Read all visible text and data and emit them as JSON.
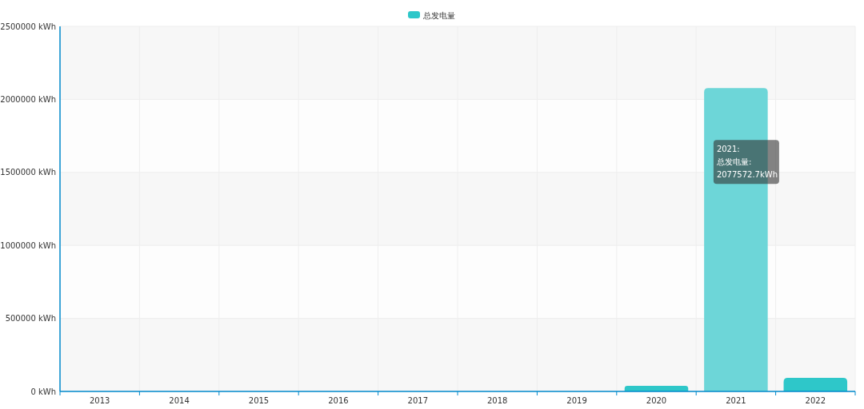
{
  "chart_data": {
    "type": "bar",
    "categories": [
      "2013",
      "2014",
      "2015",
      "2016",
      "2017",
      "2018",
      "2019",
      "2020",
      "2021",
      "2022"
    ],
    "series": [
      {
        "name": "总发电量",
        "color": "#2ec7c9",
        "values": [
          0,
          0,
          0,
          0,
          0,
          0,
          0,
          38000,
          2077572.7,
          93000
        ],
        "colors": [
          "#2ec7c9",
          "#2ec7c9",
          "#2ec7c9",
          "#2ec7c9",
          "#2ec7c9",
          "#2ec7c9",
          "#2ec7c9",
          "#2ec7c9",
          "#6dd6d8",
          "#2ec7c9"
        ]
      }
    ],
    "ylim": [
      0,
      2500000
    ],
    "yticks": [
      {
        "value": 0,
        "label": "0 kWh"
      },
      {
        "value": 500000,
        "label": "500000 kWh"
      },
      {
        "value": 1000000,
        "label": "1000000 kWh"
      },
      {
        "value": 1500000,
        "label": "1500000 kWh"
      },
      {
        "value": 2000000,
        "label": "2000000 kWh"
      },
      {
        "value": 2500000,
        "label": "2500000 kWh"
      }
    ],
    "grid": true,
    "legend": "top",
    "annotations": [
      "2021:\n总发电量:\n2077572.7kWh"
    ]
  }
}
